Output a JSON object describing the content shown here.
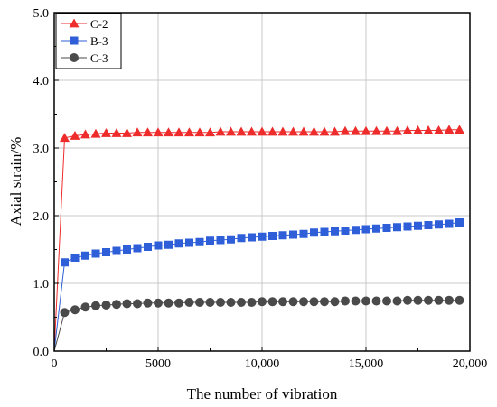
{
  "chart_data": {
    "type": "scatter",
    "title": "",
    "xlabel": "The number of vibration",
    "ylabel": "Axial strain/%",
    "xlim": [
      0,
      20000
    ],
    "ylim": [
      0,
      5.0
    ],
    "x_tick_labels": [
      "0",
      "5000",
      "10,000",
      "15,000",
      "20,000"
    ],
    "y_tick_labels": [
      "0.0",
      "1.0",
      "2.0",
      "3.0",
      "4.0",
      "5.0"
    ],
    "grid": true,
    "legend_position": "top-left",
    "series": [
      {
        "name": "C-2",
        "color": "#ee2c2c",
        "marker": "triangle",
        "x": [
          0,
          500,
          1000,
          1500,
          2000,
          2500,
          3000,
          3500,
          4000,
          4500,
          5000,
          5500,
          6000,
          6500,
          7000,
          7500,
          8000,
          8500,
          9000,
          9500,
          10000,
          10500,
          11000,
          11500,
          12000,
          12500,
          13000,
          13500,
          14000,
          14500,
          15000,
          15500,
          16000,
          16500,
          17000,
          17500,
          18000,
          18500,
          19000,
          19500
        ],
        "values": [
          0.0,
          3.15,
          3.18,
          3.2,
          3.21,
          3.22,
          3.22,
          3.22,
          3.23,
          3.23,
          3.23,
          3.23,
          3.23,
          3.23,
          3.23,
          3.23,
          3.24,
          3.24,
          3.24,
          3.24,
          3.24,
          3.24,
          3.24,
          3.24,
          3.24,
          3.24,
          3.24,
          3.24,
          3.25,
          3.25,
          3.25,
          3.25,
          3.25,
          3.25,
          3.26,
          3.26,
          3.26,
          3.26,
          3.27,
          3.27
        ]
      },
      {
        "name": "B-3",
        "color": "#2e5fd8",
        "marker": "square",
        "x": [
          0,
          500,
          1000,
          1500,
          2000,
          2500,
          3000,
          3500,
          4000,
          4500,
          5000,
          5500,
          6000,
          6500,
          7000,
          7500,
          8000,
          8500,
          9000,
          9500,
          10000,
          10500,
          11000,
          11500,
          12000,
          12500,
          13000,
          13500,
          14000,
          14500,
          15000,
          15500,
          16000,
          16500,
          17000,
          17500,
          18000,
          18500,
          19000,
          19500
        ],
        "values": [
          0.0,
          1.31,
          1.38,
          1.41,
          1.44,
          1.46,
          1.48,
          1.5,
          1.52,
          1.54,
          1.56,
          1.57,
          1.59,
          1.6,
          1.61,
          1.63,
          1.64,
          1.65,
          1.67,
          1.68,
          1.69,
          1.7,
          1.71,
          1.72,
          1.73,
          1.75,
          1.76,
          1.77,
          1.78,
          1.79,
          1.8,
          1.81,
          1.82,
          1.83,
          1.84,
          1.85,
          1.86,
          1.87,
          1.88,
          1.9
        ]
      },
      {
        "name": "C-3",
        "color": "#4a4a4a",
        "marker": "circle",
        "x": [
          0,
          500,
          1000,
          1500,
          2000,
          2500,
          3000,
          3500,
          4000,
          4500,
          5000,
          5500,
          6000,
          6500,
          7000,
          7500,
          8000,
          8500,
          9000,
          9500,
          10000,
          10500,
          11000,
          11500,
          12000,
          12500,
          13000,
          13500,
          14000,
          14500,
          15000,
          15500,
          16000,
          16500,
          17000,
          17500,
          18000,
          18500,
          19000,
          19500
        ],
        "values": [
          0.0,
          0.57,
          0.61,
          0.65,
          0.67,
          0.68,
          0.69,
          0.7,
          0.7,
          0.71,
          0.71,
          0.71,
          0.71,
          0.72,
          0.72,
          0.72,
          0.72,
          0.72,
          0.72,
          0.72,
          0.73,
          0.73,
          0.73,
          0.73,
          0.73,
          0.73,
          0.73,
          0.73,
          0.74,
          0.74,
          0.74,
          0.74,
          0.74,
          0.74,
          0.75,
          0.75,
          0.75,
          0.75,
          0.75,
          0.75
        ]
      }
    ]
  }
}
